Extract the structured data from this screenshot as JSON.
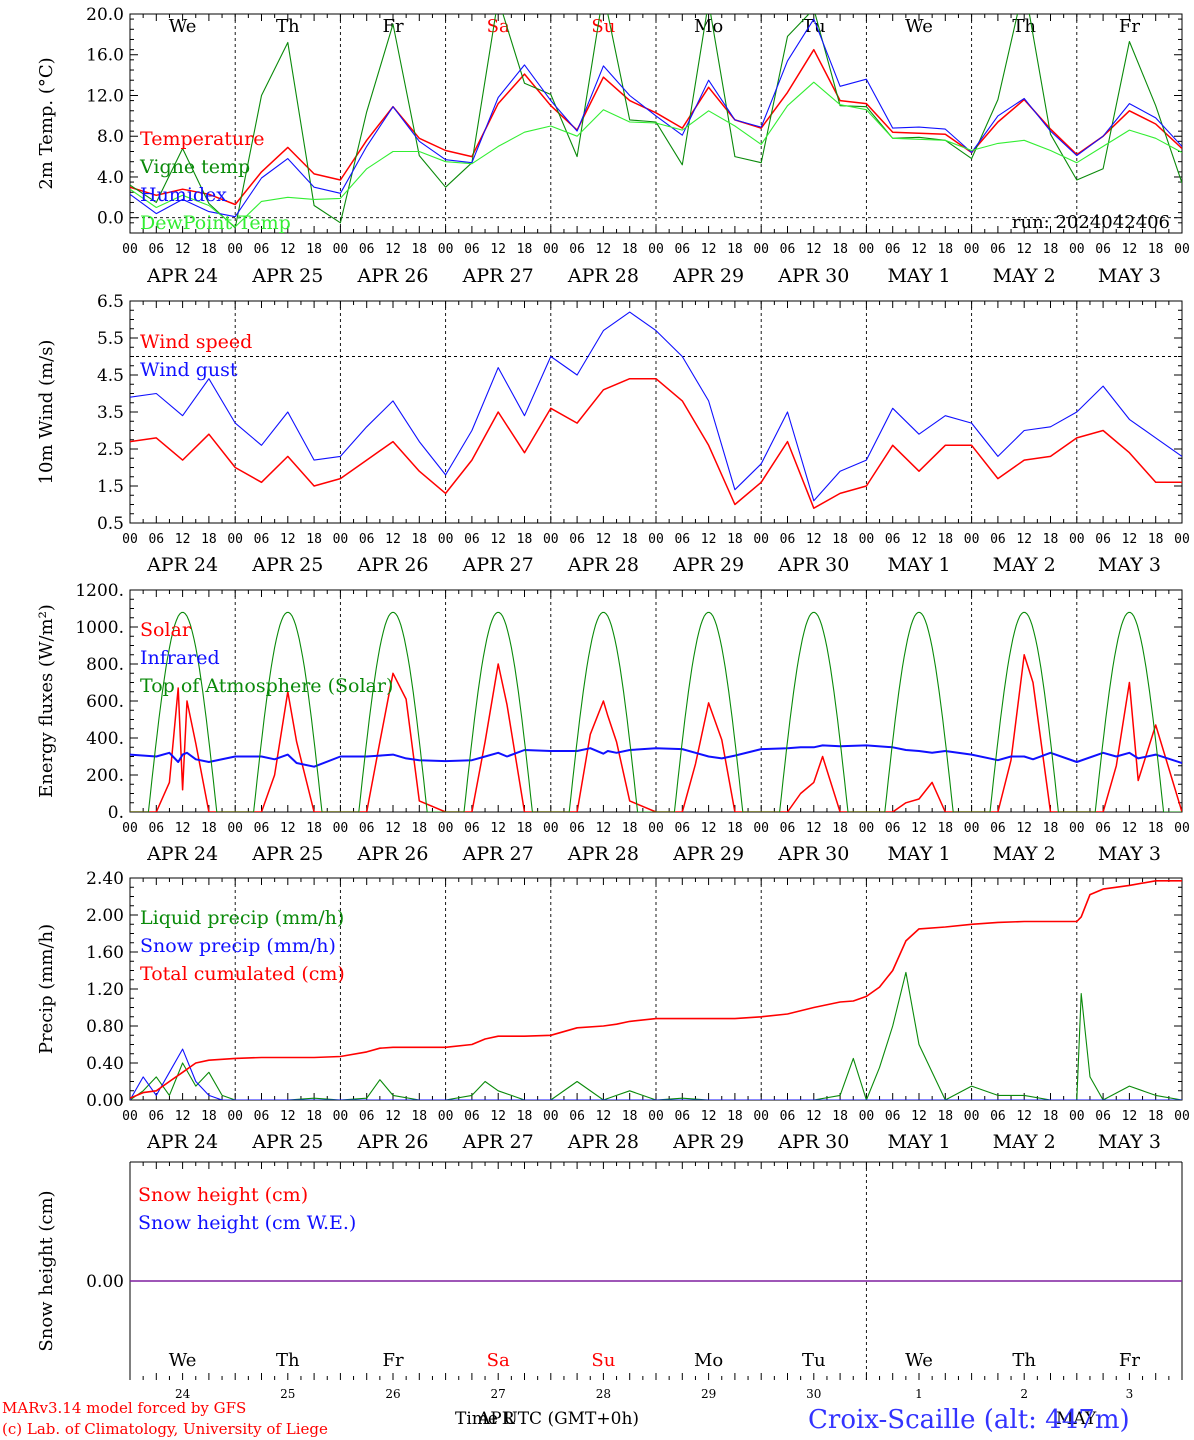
{
  "days": [
    {
      "dow": "We",
      "date": "APR 24",
      "num": "24",
      "weekend": false
    },
    {
      "dow": "Th",
      "date": "APR 25",
      "num": "25",
      "weekend": false
    },
    {
      "dow": "Fr",
      "date": "APR 26",
      "num": "26",
      "weekend": false
    },
    {
      "dow": "Sa",
      "date": "APR 27",
      "num": "27",
      "weekend": true
    },
    {
      "dow": "Su",
      "date": "APR 28",
      "num": "28",
      "weekend": true
    },
    {
      "dow": "Mo",
      "date": "APR 29",
      "num": "29",
      "weekend": false
    },
    {
      "dow": "Tu",
      "date": "APR 30",
      "num": "30",
      "weekend": false
    },
    {
      "dow": "We",
      "date": "MAY  1",
      "num": "1",
      "weekend": false
    },
    {
      "dow": "Th",
      "date": "MAY  2",
      "num": "2",
      "weekend": false
    },
    {
      "dow": "Fr",
      "date": "MAY  3",
      "num": "3",
      "weekend": false
    }
  ],
  "hour_ticks": [
    "00",
    "06",
    "12",
    "18"
  ],
  "colors": {
    "red": "#ff0000",
    "green": "#0a8a0a",
    "blue": "#1010ff",
    "lightgreen": "#33ee33",
    "purple": "#7f1f9f",
    "black": "#000000"
  },
  "run_label": "run: 2024042406",
  "footer": {
    "credit1": "MARv3.14 model forced by GFS",
    "credit2": "(c) Lab. of Climatology, University of Liege",
    "xlabel_a": "Time UTC (GMT+0h)",
    "xlabel_b": "APR",
    "xlabel_c": "MAY",
    "station": "Croix-Scaille (alt: 447m)"
  },
  "chart_data": [
    {
      "type": "line",
      "ylabel": "2m Temp. (°C)",
      "ylim": [
        -1.5,
        20.0
      ],
      "yticks": [
        "0.0",
        "4.0",
        "8.0",
        "12.0",
        "16.0",
        "20.0"
      ],
      "ytick_values": [
        0,
        4,
        8,
        12,
        16,
        20
      ],
      "dashed_level": 0,
      "legend": [
        "Temperature",
        "Vigne temp",
        "Humidex",
        "DewPoint Temp"
      ],
      "x_hours": [
        0,
        6,
        12,
        18,
        24,
        30,
        36,
        42,
        48,
        54,
        60,
        66,
        72,
        78,
        84,
        90,
        96,
        102,
        108,
        114,
        120,
        126,
        132,
        138,
        144,
        150,
        156,
        162,
        168,
        174,
        180,
        186,
        192,
        198,
        204,
        210,
        216,
        222,
        228,
        234,
        240
      ],
      "series": [
        {
          "name": "Temperature",
          "color": "red",
          "values": [
            3.0,
            2.2,
            2.8,
            2.3,
            1.3,
            4.5,
            6.9,
            4.3,
            3.7,
            7.6,
            10.9,
            7.8,
            6.6,
            6.0,
            11.2,
            14.1,
            11.0,
            8.6,
            13.8,
            11.5,
            10.3,
            8.8,
            12.8,
            9.6,
            8.8,
            12.3,
            16.5,
            11.5,
            11.2,
            8.4,
            8.3,
            8.2,
            6.4,
            9.4,
            11.6,
            8.7,
            6.2,
            8.0,
            10.5,
            9.2,
            6.8
          ]
        },
        {
          "name": "Vigne temp",
          "color": "green",
          "values": [
            3.2,
            1.5,
            6.8,
            1.4,
            -1.0,
            12.0,
            17.2,
            1.2,
            -0.5,
            10.4,
            19.0,
            6.1,
            3.0,
            5.4,
            21.5,
            13.2,
            12.1,
            6.0,
            22.1,
            9.6,
            9.4,
            5.2,
            21.2,
            6.0,
            5.4,
            17.8,
            20.5,
            11.0,
            10.9,
            7.8,
            7.9,
            7.6,
            5.8,
            11.6,
            22.9,
            8.2,
            3.7,
            4.8,
            17.3,
            11.0,
            3.4
          ]
        },
        {
          "name": "Humidex",
          "color": "blue",
          "values": [
            2.3,
            0.4,
            1.8,
            0.6,
            0.1,
            3.9,
            5.8,
            3.0,
            2.4,
            7.0,
            10.9,
            7.5,
            5.7,
            5.4,
            11.8,
            15.0,
            11.5,
            8.5,
            14.9,
            12.0,
            10.0,
            8.1,
            13.5,
            9.6,
            8.9,
            15.4,
            19.5,
            12.9,
            13.6,
            8.8,
            8.9,
            8.7,
            6.4,
            10.0,
            11.7,
            8.5,
            6.1,
            8.0,
            11.2,
            9.8,
            7.0
          ]
        },
        {
          "name": "DewPoint Temp",
          "color": "lightgreen",
          "values": [
            2.8,
            1.0,
            2.2,
            1.2,
            -0.9,
            1.6,
            2.0,
            1.8,
            1.9,
            4.8,
            6.5,
            6.5,
            5.5,
            5.3,
            7.0,
            8.4,
            9.0,
            8.0,
            10.6,
            9.4,
            9.3,
            8.6,
            10.5,
            9.0,
            7.2,
            11.0,
            13.3,
            11.1,
            10.6,
            7.8,
            7.7,
            7.6,
            6.6,
            7.3,
            7.6,
            6.6,
            5.4,
            7.0,
            8.6,
            7.8,
            6.4
          ]
        }
      ]
    },
    {
      "type": "line",
      "ylabel": "10m Wind (m/s)",
      "ylim": [
        0.5,
        6.5
      ],
      "yticks": [
        "0.5",
        "1.5",
        "2.5",
        "3.5",
        "4.5",
        "5.5",
        "6.5"
      ],
      "ytick_values": [
        0.5,
        1.5,
        2.5,
        3.5,
        4.5,
        5.5,
        6.5
      ],
      "dashed_level": 5.0,
      "legend": [
        "Wind speed",
        "Wind gust"
      ],
      "x_hours": [
        0,
        6,
        12,
        18,
        24,
        30,
        36,
        42,
        48,
        54,
        60,
        66,
        72,
        78,
        84,
        90,
        96,
        102,
        108,
        114,
        120,
        126,
        132,
        138,
        144,
        150,
        156,
        162,
        168,
        174,
        180,
        186,
        192,
        198,
        204,
        210,
        216,
        222,
        228,
        234,
        240
      ],
      "series": [
        {
          "name": "Wind speed",
          "color": "red",
          "values": [
            2.7,
            2.8,
            2.2,
            2.9,
            2.0,
            1.6,
            2.3,
            1.5,
            1.7,
            2.2,
            2.7,
            1.9,
            1.3,
            2.2,
            3.5,
            2.4,
            3.6,
            3.2,
            4.1,
            4.4,
            4.4,
            3.8,
            2.6,
            1.0,
            1.6,
            2.7,
            0.9,
            1.3,
            1.5,
            2.6,
            1.9,
            2.6,
            2.6,
            1.7,
            2.2,
            2.3,
            2.8,
            3.0,
            2.4,
            1.6,
            1.6
          ]
        },
        {
          "name": "Wind gust",
          "color": "blue",
          "values": [
            3.9,
            4.0,
            3.4,
            4.4,
            3.2,
            2.6,
            3.5,
            2.2,
            2.3,
            3.1,
            3.8,
            2.7,
            1.8,
            3.0,
            4.7,
            3.4,
            5.0,
            4.5,
            5.7,
            6.2,
            5.7,
            5.0,
            3.8,
            1.4,
            2.1,
            3.5,
            1.1,
            1.9,
            2.2,
            3.6,
            2.9,
            3.4,
            3.2,
            2.3,
            3.0,
            3.1,
            3.5,
            4.2,
            3.3,
            2.8,
            2.3
          ]
        }
      ]
    },
    {
      "type": "line",
      "ylabel": "Energy fluxes (W/m²)",
      "ylim": [
        0,
        1200
      ],
      "yticks": [
        "0.",
        "200.",
        "400.",
        "600.",
        "800.",
        "1000.",
        "1200."
      ],
      "ytick_values": [
        0,
        200,
        400,
        600,
        800,
        1000,
        1200
      ],
      "legend": [
        "Solar",
        "Infrared",
        "Top of Atmosphere (Solar)"
      ],
      "toa_peak": 1080,
      "x_hours": [
        0,
        6,
        9,
        11,
        12,
        13,
        15,
        18,
        24,
        30,
        33,
        36,
        38,
        42,
        48,
        54,
        57,
        60,
        63,
        66,
        72,
        78,
        81,
        84,
        86,
        90,
        96,
        102,
        105,
        108,
        109,
        111,
        114,
        120,
        126,
        129,
        132,
        135,
        138,
        144,
        150,
        153,
        156,
        158,
        162,
        168,
        174,
        177,
        180,
        183,
        186,
        192,
        198,
        201,
        204,
        206,
        210,
        216,
        222,
        225,
        228,
        230,
        234,
        240
      ],
      "series": [
        {
          "name": "Solar",
          "color": "red",
          "values": [
            0,
            0,
            160,
            670,
            120,
            600,
            370,
            0,
            0,
            0,
            200,
            650,
            380,
            0,
            0,
            0,
            380,
            750,
            610,
            60,
            0,
            0,
            380,
            800,
            580,
            0,
            0,
            0,
            420,
            600,
            520,
            380,
            60,
            0,
            0,
            260,
            590,
            390,
            0,
            0,
            0,
            100,
            160,
            300,
            0,
            0,
            0,
            50,
            70,
            160,
            0,
            0,
            0,
            280,
            850,
            700,
            0,
            0,
            0,
            250,
            700,
            170,
            470,
            0
          ]
        },
        {
          "name": "Infrared",
          "color": "blue",
          "values": [
            310,
            300,
            320,
            270,
            310,
            320,
            285,
            270,
            300,
            300,
            285,
            310,
            265,
            245,
            300,
            300,
            305,
            310,
            290,
            280,
            275,
            280,
            300,
            320,
            300,
            335,
            330,
            330,
            345,
            315,
            330,
            320,
            335,
            345,
            340,
            320,
            300,
            290,
            305,
            340,
            345,
            350,
            350,
            360,
            355,
            360,
            350,
            335,
            330,
            320,
            330,
            310,
            280,
            300,
            300,
            285,
            320,
            270,
            320,
            300,
            320,
            290,
            310,
            265
          ]
        },
        {
          "name": "Top of Atmosphere (Solar)",
          "color": "green",
          "values": []
        }
      ]
    },
    {
      "type": "line",
      "ylabel": "Precip (mm/h)",
      "ylim": [
        0,
        2.4
      ],
      "yticks": [
        "0.00",
        "0.40",
        "0.80",
        "1.20",
        "1.60",
        "2.00",
        "2.40"
      ],
      "ytick_values": [
        0,
        0.4,
        0.8,
        1.2,
        1.6,
        2.0,
        2.4
      ],
      "legend": [
        "Liquid precip (mm/h)",
        "Snow precip (mm/h)",
        "Total cumulated (cm)"
      ],
      "x_hours": [
        0,
        3,
        6,
        9,
        12,
        15,
        18,
        21,
        24,
        30,
        36,
        42,
        48,
        54,
        57,
        60,
        66,
        72,
        78,
        81,
        84,
        87,
        90,
        96,
        102,
        108,
        111,
        114,
        120,
        126,
        132,
        138,
        144,
        150,
        156,
        162,
        165,
        168,
        171,
        174,
        177,
        180,
        186,
        192,
        198,
        204,
        210,
        216,
        217,
        219,
        222,
        228,
        234,
        240
      ],
      "series": [
        {
          "name": "Liquid precip (mm/h)",
          "color": "green",
          "values": [
            0,
            0.1,
            0.25,
            0.05,
            0.4,
            0.15,
            0.3,
            0.05,
            0,
            0,
            0,
            0.02,
            0,
            0.02,
            0.22,
            0.05,
            0,
            0,
            0.05,
            0.2,
            0.1,
            0.05,
            0,
            0,
            0.2,
            0,
            0.05,
            0.1,
            0,
            0.02,
            0,
            0,
            0,
            0,
            0,
            0.05,
            0.45,
            0,
            0.35,
            0.8,
            1.38,
            0.6,
            0,
            0.15,
            0.05,
            0.05,
            0,
            0,
            1.15,
            0.25,
            0,
            0.15,
            0.05,
            0
          ]
        },
        {
          "name": "Snow precip (mm/h)",
          "color": "blue",
          "values": [
            0,
            0.25,
            0.05,
            0.3,
            0.55,
            0.2,
            0.05,
            0,
            0,
            0,
            0,
            0,
            0,
            0,
            0,
            0,
            0,
            0,
            0,
            0,
            0,
            0,
            0,
            0,
            0,
            0,
            0,
            0,
            0,
            0,
            0,
            0,
            0,
            0,
            0,
            0,
            0,
            0,
            0,
            0,
            0,
            0,
            0,
            0,
            0,
            0,
            0,
            0,
            0,
            0,
            0,
            0,
            0,
            0
          ]
        },
        {
          "name": "Total cumulated (cm)",
          "color": "red",
          "values": [
            0.02,
            0.08,
            0.1,
            0.2,
            0.3,
            0.4,
            0.43,
            0.44,
            0.45,
            0.46,
            0.46,
            0.46,
            0.47,
            0.52,
            0.56,
            0.57,
            0.57,
            0.57,
            0.6,
            0.66,
            0.69,
            0.69,
            0.69,
            0.7,
            0.78,
            0.8,
            0.82,
            0.85,
            0.88,
            0.88,
            0.88,
            0.88,
            0.9,
            0.93,
            1.0,
            1.06,
            1.07,
            1.12,
            1.22,
            1.4,
            1.72,
            1.85,
            1.87,
            1.9,
            1.92,
            1.93,
            1.93,
            1.93,
            1.98,
            2.22,
            2.28,
            2.32,
            2.37,
            2.37
          ]
        }
      ]
    },
    {
      "type": "line",
      "ylabel": "Snow height (cm)",
      "yticks": [
        "0.00"
      ],
      "legend": [
        "Snow height (cm)",
        "Snow height (cm W.E.)"
      ],
      "series": [
        {
          "name": "Snow height (cm)",
          "color": "red",
          "values": [
            0,
            0
          ]
        },
        {
          "name": "Snow height (cm W.E.)",
          "color": "blue",
          "values": [
            0,
            0
          ]
        }
      ]
    }
  ]
}
